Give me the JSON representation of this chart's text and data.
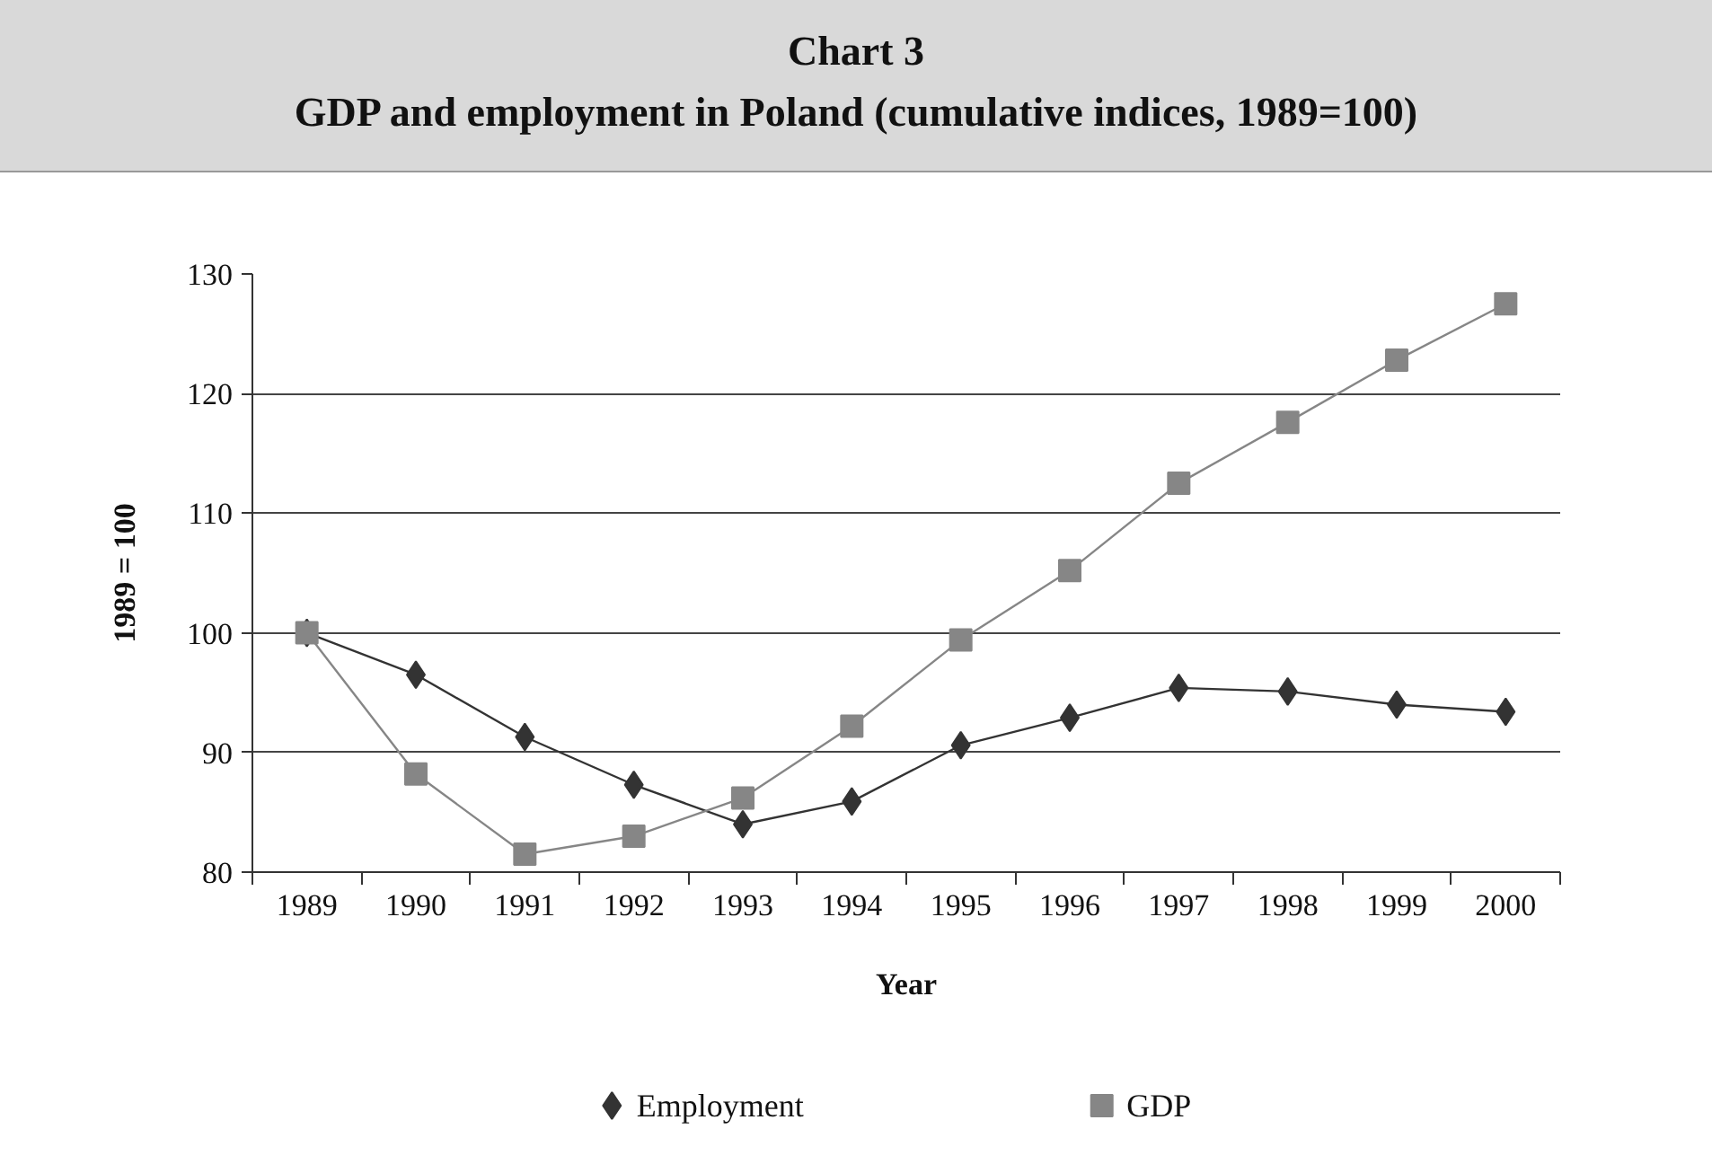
{
  "chart_data": {
    "type": "line",
    "title": "Chart 3",
    "subtitle": "GDP and employment in Poland (cumulative indices, 1989=100)",
    "xlabel": "Year",
    "ylabel": "1989 = 100",
    "categories": [
      "1989",
      "1990",
      "1991",
      "1992",
      "1993",
      "1994",
      "1995",
      "1996",
      "1997",
      "1998",
      "1999",
      "2000"
    ],
    "series": [
      {
        "name": "Employment",
        "color": "#333333",
        "marker": "diamond",
        "values": [
          100,
          96.5,
          91.3,
          87.3,
          84.0,
          85.9,
          90.6,
          92.9,
          95.4,
          95.1,
          94.0,
          93.4
        ]
      },
      {
        "name": "GDP",
        "color": "#868686",
        "marker": "square",
        "values": [
          100,
          88.2,
          81.5,
          83.0,
          86.2,
          92.2,
          99.4,
          105.2,
          112.5,
          117.6,
          122.8,
          127.5
        ]
      }
    ],
    "ylim": [
      80,
      130
    ],
    "yticks": [
      80,
      90,
      100,
      110,
      120,
      130
    ],
    "grid": "y",
    "legend": "bottom",
    "line_style": "solid"
  }
}
